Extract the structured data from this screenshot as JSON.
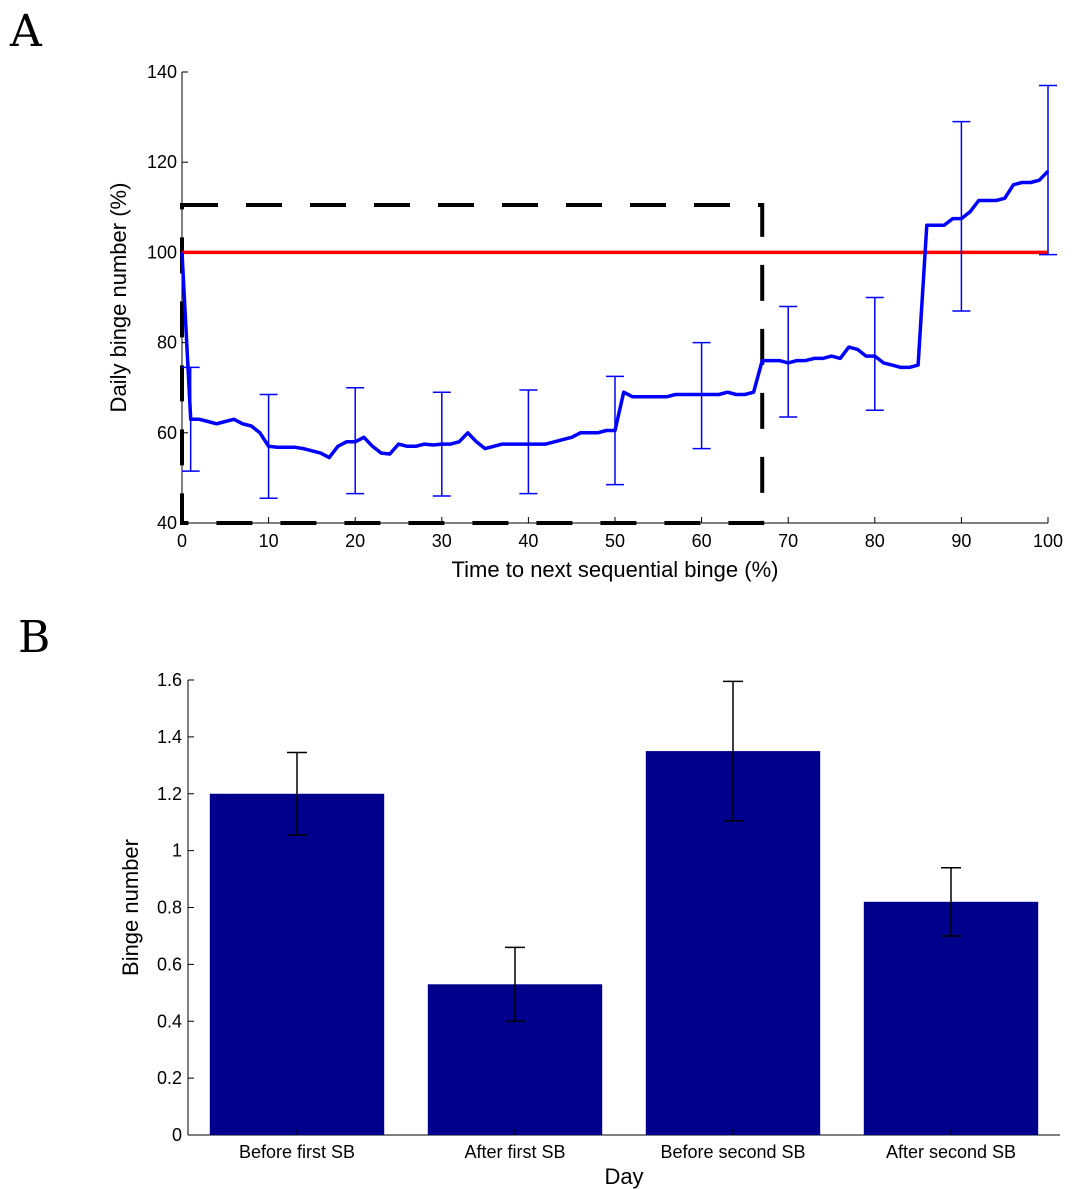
{
  "figure": {
    "panels": [
      "A",
      "B"
    ]
  },
  "chart_data": [
    {
      "type": "line",
      "panel": "A",
      "title": "",
      "xlabel": "Time to next sequential binge (%)",
      "ylabel": "Daily binge number (%)",
      "xlim": [
        0,
        100
      ],
      "ylim": [
        40,
        140
      ],
      "xticks": [
        0,
        10,
        20,
        30,
        40,
        50,
        60,
        70,
        80,
        90,
        100
      ],
      "yticks": [
        40,
        60,
        80,
        100,
        120,
        140
      ],
      "grid": false,
      "colors": {
        "series": "#0000ff",
        "reference": "#ff0000",
        "region": "#000000"
      },
      "series": [
        {
          "x": [
            0,
            1,
            2,
            3,
            4,
            5,
            6,
            7,
            8,
            9,
            10,
            11,
            12,
            13,
            14,
            15,
            16,
            17,
            18,
            19,
            20,
            21,
            22,
            23,
            24,
            25,
            26,
            27,
            28,
            29,
            30,
            31,
            32,
            33,
            34,
            35,
            36,
            37,
            38,
            39,
            40,
            41,
            42,
            43,
            44,
            45,
            46,
            47,
            48,
            49,
            50,
            51,
            52,
            53,
            54,
            55,
            56,
            57,
            58,
            59,
            60,
            61,
            62,
            63,
            64,
            65,
            66,
            67,
            68,
            69,
            70,
            71,
            72,
            73,
            74,
            75,
            76,
            77,
            78,
            79,
            80,
            81,
            82,
            83,
            84,
            85,
            86,
            87,
            88,
            89,
            90,
            91,
            92,
            93,
            94,
            95,
            96,
            97,
            98,
            99,
            100
          ],
          "y": [
            100,
            63,
            63,
            62.5,
            62,
            62.5,
            63,
            62,
            61.5,
            60,
            57,
            56.8,
            56.8,
            56.8,
            56.5,
            56,
            55.5,
            54.5,
            57,
            58,
            58,
            59,
            57,
            55.5,
            55.3,
            57.5,
            57,
            57,
            57.5,
            57.3,
            57.5,
            57.5,
            58,
            60,
            58,
            56.5,
            57,
            57.5,
            57.5,
            57.5,
            57.5,
            57.5,
            57.5,
            58,
            58.5,
            59,
            60,
            60,
            60,
            60.5,
            60.5,
            69,
            68,
            68,
            68,
            68,
            68,
            68.5,
            68.5,
            68.5,
            68.5,
            68.5,
            68.5,
            69,
            68.5,
            68.5,
            69,
            76,
            76,
            76,
            75.5,
            76,
            76,
            76.5,
            76.5,
            77,
            76.5,
            79,
            78.5,
            77,
            77,
            75.5,
            75,
            74.5,
            74.5,
            75,
            106,
            106,
            106,
            107.5,
            107.5,
            109,
            111.5,
            111.5,
            111.5,
            112,
            115,
            115.5,
            115.5,
            116,
            118
          ]
        }
      ],
      "errorbars": {
        "x": [
          1,
          10,
          20,
          30,
          40,
          50,
          60,
          70,
          80,
          90,
          100
        ],
        "y": [
          63,
          57,
          58,
          57.5,
          57.5,
          60.5,
          68.5,
          76,
          77,
          107.5,
          118
        ],
        "lower": [
          51.5,
          45.5,
          46.5,
          46,
          46.5,
          48.5,
          56.5,
          63.5,
          65,
          87,
          99.5
        ],
        "upper": [
          74.5,
          68.5,
          70,
          69,
          69.5,
          72.5,
          80,
          88,
          90,
          129,
          137
        ]
      },
      "reference_line": {
        "y": 100,
        "x": [
          0,
          100
        ]
      },
      "dashed_region": {
        "x": [
          0,
          67
        ],
        "y": [
          40,
          110.5
        ]
      }
    },
    {
      "type": "bar",
      "panel": "B",
      "title": "",
      "xlabel": "Day",
      "ylabel": "Binge number",
      "categories": [
        "Before first SB",
        "After first SB",
        "Before second SB",
        "After second SB"
      ],
      "values": [
        1.2,
        0.53,
        1.35,
        0.82
      ],
      "errors": [
        0.145,
        0.13,
        0.245,
        0.12
      ],
      "ylim": [
        0,
        1.6
      ],
      "yticks": [
        0,
        0.2,
        0.4,
        0.6,
        0.8,
        1,
        1.2,
        1.4,
        1.6
      ],
      "ytick_labels": [
        "0",
        "0.2",
        "0.4",
        "0.6",
        "0.8",
        "1",
        "1.2",
        "1.4",
        "1.6"
      ],
      "grid": false,
      "colors": {
        "bar": "#00008c",
        "errorbar": "#000000"
      }
    }
  ]
}
